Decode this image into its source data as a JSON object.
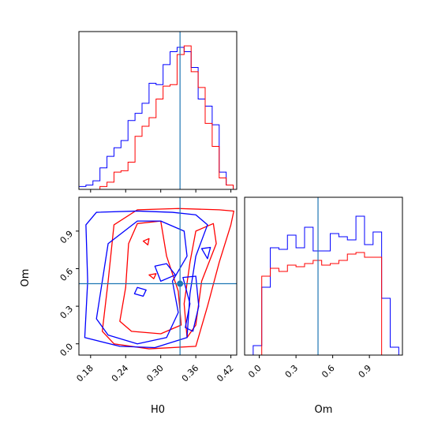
{
  "chart_data": {
    "type": "corner",
    "parameters": [
      "H0",
      "Om"
    ],
    "truth": {
      "H0": 0.333,
      "Om": 0.48
    },
    "colors": {
      "blue": "#0000ff",
      "red": "#ff0000",
      "truth": "#1f77b4"
    },
    "panels": [
      {
        "id": "h0-marginal",
        "type": "histogram",
        "parameter": "H0",
        "xlim": [
          0.16,
          0.43
        ],
        "series": [
          {
            "color": "blue",
            "bin_edges": [
              0.16,
              0.172,
              0.184,
              0.196,
              0.208,
              0.22,
              0.232,
              0.244,
              0.256,
              0.268,
              0.28,
              0.292,
              0.304,
              0.316,
              0.328,
              0.34,
              0.352,
              0.364,
              0.376,
              0.388,
              0.4,
              0.412,
              0.424
            ],
            "counts": [
              0.02,
              0.03,
              0.06,
              0.15,
              0.23,
              0.29,
              0.34,
              0.48,
              0.53,
              0.6,
              0.74,
              0.73,
              0.87,
              0.96,
              0.99,
              0.96,
              0.85,
              0.63,
              0.58,
              0.45,
              0.12,
              0.03
            ]
          },
          {
            "color": "red",
            "bin_edges": [
              0.16,
              0.172,
              0.184,
              0.196,
              0.208,
              0.22,
              0.232,
              0.244,
              0.256,
              0.268,
              0.28,
              0.292,
              0.304,
              0.316,
              0.328,
              0.34,
              0.352,
              0.364,
              0.376,
              0.388,
              0.4,
              0.412,
              0.424
            ],
            "counts": [
              0.0,
              0.0,
              0.0,
              0.02,
              0.05,
              0.12,
              0.13,
              0.19,
              0.37,
              0.44,
              0.5,
              0.63,
              0.72,
              0.73,
              0.94,
              1.0,
              0.82,
              0.71,
              0.46,
              0.3,
              0.08,
              0.03
            ]
          }
        ]
      },
      {
        "id": "om-marginal",
        "type": "histogram",
        "parameter": "Om",
        "xlim": [
          -0.12,
          1.17
        ],
        "series": [
          {
            "color": "blue",
            "bin_edges": [
              -0.12,
              -0.05,
              0.02,
              0.09,
              0.16,
              0.23,
              0.3,
              0.37,
              0.44,
              0.51,
              0.58,
              0.65,
              0.72,
              0.79,
              0.86,
              0.93,
              1.0,
              1.07,
              1.14
            ],
            "counts": [
              0.0,
              0.06,
              0.43,
              0.68,
              0.67,
              0.76,
              0.68,
              0.81,
              0.66,
              0.66,
              0.77,
              0.75,
              0.73,
              0.88,
              0.7,
              0.78,
              0.36,
              0.05
            ]
          },
          {
            "color": "red",
            "bin_edges": [
              -0.12,
              -0.05,
              0.02,
              0.09,
              0.16,
              0.23,
              0.3,
              0.37,
              0.44,
              0.51,
              0.58,
              0.65,
              0.72,
              0.79,
              0.86,
              0.93,
              1.0,
              1.07,
              1.14
            ],
            "counts": [
              0.0,
              0.0,
              0.5,
              0.55,
              0.53,
              0.57,
              0.56,
              0.58,
              0.6,
              0.57,
              0.58,
              0.6,
              0.64,
              0.65,
              0.62,
              0.62,
              0.0,
              0.0
            ]
          }
        ]
      },
      {
        "id": "h0-om-contour",
        "type": "contour",
        "xlim": [
          0.16,
          0.43
        ],
        "ylim": [
          -0.09,
          1.17
        ],
        "series": [
          {
            "color": "blue",
            "contours": [
              [
                [
                  0.17,
                  0.05
                ],
                [
                  0.175,
                  0.5
                ],
                [
                  0.172,
                  0.95
                ],
                [
                  0.19,
                  1.05
                ],
                [
                  0.26,
                  1.06
                ],
                [
                  0.32,
                  1.05
                ],
                [
                  0.36,
                  1.03
                ],
                [
                  0.38,
                  0.95
                ],
                [
                  0.36,
                  0.7
                ],
                [
                  0.35,
                  0.4
                ],
                [
                  0.345,
                  0.05
                ],
                [
                  0.29,
                  -0.03
                ],
                [
                  0.23,
                  -0.02
                ],
                [
                  0.17,
                  0.05
                ]
              ],
              [
                [
                  0.19,
                  0.2
                ],
                [
                  0.2,
                  0.5
                ],
                [
                  0.21,
                  0.8
                ],
                [
                  0.26,
                  0.98
                ],
                [
                  0.3,
                  0.98
                ],
                [
                  0.34,
                  0.9
                ],
                [
                  0.345,
                  0.7
                ],
                [
                  0.32,
                  0.5
                ],
                [
                  0.33,
                  0.25
                ],
                [
                  0.31,
                  0.05
                ],
                [
                  0.26,
                  0.0
                ],
                [
                  0.21,
                  0.07
                ],
                [
                  0.19,
                  0.2
                ]
              ],
              [
                [
                  0.29,
                  0.62
                ],
                [
                  0.31,
                  0.64
                ],
                [
                  0.325,
                  0.55
                ],
                [
                  0.3,
                  0.5
                ],
                [
                  0.29,
                  0.62
                ]
              ],
              [
                [
                  0.26,
                  0.45
                ],
                [
                  0.275,
                  0.43
                ],
                [
                  0.27,
                  0.38
                ],
                [
                  0.255,
                  0.4
                ],
                [
                  0.26,
                  0.45
                ]
              ],
              [
                [
                  0.338,
                  0.53
                ],
                [
                  0.36,
                  0.54
                ],
                [
                  0.365,
                  0.3
                ],
                [
                  0.355,
                  0.1
                ],
                [
                  0.342,
                  0.13
                ],
                [
                  0.35,
                  0.32
                ],
                [
                  0.338,
                  0.53
                ]
              ],
              [
                [
                  0.37,
                  0.76
                ],
                [
                  0.385,
                  0.77
                ],
                [
                  0.38,
                  0.68
                ],
                [
                  0.37,
                  0.76
                ]
              ]
            ]
          },
          {
            "color": "red",
            "contours": [
              [
                [
                  0.2,
                  0.1
                ],
                [
                  0.21,
                  0.5
                ],
                [
                  0.22,
                  0.95
                ],
                [
                  0.26,
                  1.07
                ],
                [
                  0.33,
                  1.08
                ],
                [
                  0.4,
                  1.07
                ],
                [
                  0.425,
                  1.06
                ],
                [
                  0.42,
                  0.95
                ],
                [
                  0.4,
                  0.65
                ],
                [
                  0.38,
                  0.3
                ],
                [
                  0.36,
                  -0.02
                ],
                [
                  0.28,
                  -0.04
                ],
                [
                  0.22,
                  0.0
                ],
                [
                  0.2,
                  0.1
                ]
              ],
              [
                [
                  0.23,
                  0.18
                ],
                [
                  0.24,
                  0.45
                ],
                [
                  0.245,
                  0.8
                ],
                [
                  0.26,
                  0.96
                ],
                [
                  0.3,
                  0.98
                ],
                [
                  0.31,
                  0.7
                ],
                [
                  0.33,
                  0.42
                ],
                [
                  0.335,
                  0.15
                ],
                [
                  0.3,
                  0.08
                ],
                [
                  0.25,
                  0.1
                ],
                [
                  0.23,
                  0.18
                ]
              ],
              [
                [
                  0.34,
                  0.32
                ],
                [
                  0.35,
                  0.65
                ],
                [
                  0.36,
                  0.9
                ],
                [
                  0.39,
                  0.96
                ],
                [
                  0.395,
                  0.8
                ],
                [
                  0.37,
                  0.5
                ],
                [
                  0.36,
                  0.15
                ],
                [
                  0.345,
                  0.05
                ],
                [
                  0.34,
                  0.32
                ]
              ],
              [
                [
                  0.27,
                  0.82
                ],
                [
                  0.28,
                  0.84
                ],
                [
                  0.278,
                  0.79
                ],
                [
                  0.27,
                  0.82
                ]
              ],
              [
                [
                  0.28,
                  0.55
                ],
                [
                  0.292,
                  0.56
                ],
                [
                  0.288,
                  0.52
                ],
                [
                  0.28,
                  0.55
                ]
              ]
            ]
          }
        ]
      }
    ],
    "axes": [
      {
        "panel": "h0-om-contour",
        "axis": "x",
        "label": "H0",
        "ticks": [
          0.18,
          0.24,
          0.3,
          0.36,
          0.42
        ],
        "tick_labels": [
          "0.18",
          "0.24",
          "0.30",
          "0.36",
          "0.42"
        ]
      },
      {
        "panel": "h0-om-contour",
        "axis": "y",
        "label": "Om",
        "ticks": [
          0.0,
          0.3,
          0.6,
          0.9
        ],
        "tick_labels": [
          "0.0",
          "0.3",
          "0.6",
          "0.9"
        ]
      },
      {
        "panel": "om-marginal",
        "axis": "x",
        "label": "Om",
        "ticks": [
          0.0,
          0.3,
          0.6,
          0.9
        ],
        "tick_labels": [
          "0.0",
          "0.3",
          "0.6",
          "0.9"
        ]
      }
    ]
  }
}
